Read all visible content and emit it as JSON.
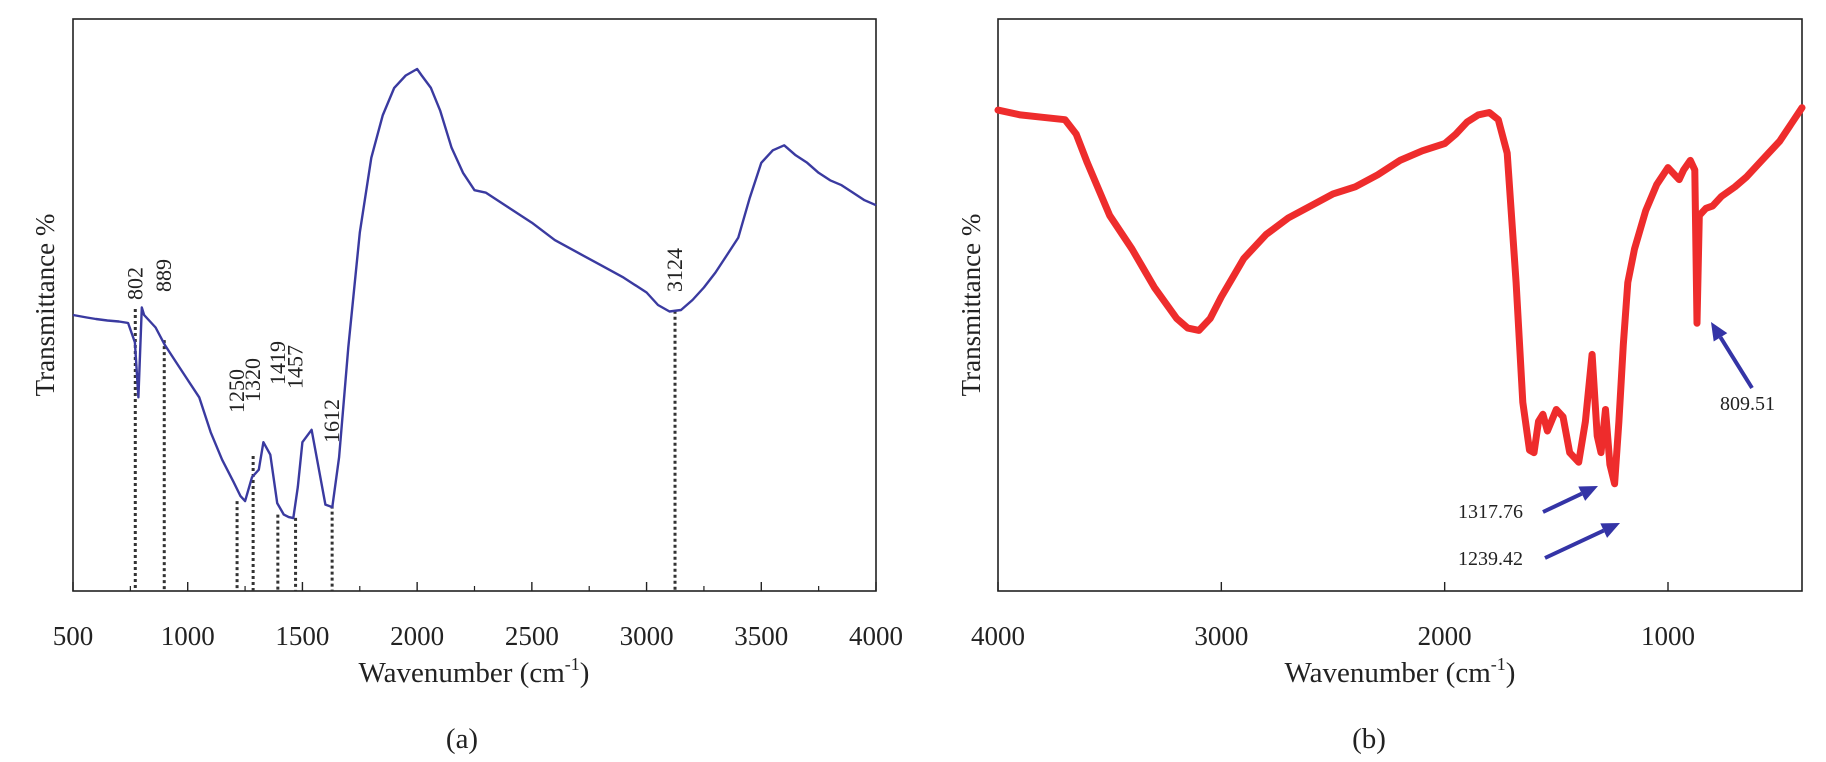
{
  "chart_data": [
    {
      "type": "line",
      "panel_label": "(a)",
      "xlabel": "Wavenumber (cm",
      "xlabel_sup": "-1",
      "xlabel_end": ")",
      "ylabel": "Transmittance %",
      "xlim": [
        500,
        4000
      ],
      "x_reversed": false,
      "x_ticks": [
        "500",
        "1000",
        "1500",
        "2000",
        "2500",
        "3000",
        "3500",
        "4000"
      ],
      "x_tick_values": [
        500,
        1000,
        1500,
        2000,
        2500,
        3000,
        3500,
        4000
      ],
      "y_axis_values_shown": false,
      "line_color": "#3a3aa0",
      "series": [
        {
          "x": [
            500,
            560,
            600,
            650,
            700,
            740,
            770,
            785,
            800,
            810,
            830,
            860,
            900,
            950,
            1000,
            1050,
            1100,
            1150,
            1200,
            1230,
            1250,
            1280,
            1310,
            1330,
            1360,
            1390,
            1419,
            1440,
            1460,
            1480,
            1500,
            1540,
            1570,
            1600,
            1630,
            1660,
            1700,
            1750,
            1800,
            1850,
            1900,
            1950,
            2000,
            2020,
            2060,
            2100,
            2150,
            2200,
            2250,
            2300,
            2400,
            2500,
            2600,
            2700,
            2800,
            2900,
            3000,
            3050,
            3100,
            3150,
            3200,
            3250,
            3300,
            3350,
            3400,
            3450,
            3500,
            3550,
            3600,
            3650,
            3700,
            3750,
            3800,
            3850,
            3900,
            3950,
            4000
          ],
          "y": [
            48.5,
            48.0,
            47.7,
            47.4,
            47.2,
            46.9,
            43.0,
            32.0,
            50.0,
            48.5,
            47.5,
            46.0,
            42.5,
            39.0,
            35.5,
            32.0,
            25.0,
            19.5,
            15.0,
            12.2,
            11.2,
            16.0,
            17.5,
            23.0,
            20.5,
            10.8,
            8.5,
            8.0,
            7.8,
            14.0,
            23.0,
            25.5,
            18.0,
            10.5,
            10.0,
            20.0,
            42.0,
            65.0,
            80.0,
            88.5,
            94.0,
            96.5,
            97.8,
            96.5,
            94.0,
            89.5,
            82.0,
            77.0,
            73.5,
            73.0,
            70.0,
            67.0,
            63.5,
            61.0,
            58.5,
            56.0,
            53.0,
            50.5,
            49.2,
            49.5,
            51.5,
            54.0,
            57.0,
            60.5,
            64.0,
            72.0,
            79.0,
            81.5,
            82.5,
            80.5,
            79.0,
            77.0,
            75.5,
            74.5,
            73.0,
            71.5,
            70.5
          ]
        }
      ],
      "annotations": [
        {
          "label": "802",
          "x": 802
        },
        {
          "label": "889",
          "x": 889
        },
        {
          "label": "1250",
          "x": 1250
        },
        {
          "label": "1320",
          "x": 1320
        },
        {
          "label": "1419",
          "x": 1419
        },
        {
          "label": "1457",
          "x": 1457
        },
        {
          "label": "1612",
          "x": 1612
        },
        {
          "label": "3124",
          "x": 3124
        }
      ]
    },
    {
      "type": "line",
      "panel_label": "(b)",
      "xlabel": "Wavenumber (cm",
      "xlabel_sup": "-1",
      "xlabel_end": ")",
      "ylabel": "Transmittance %",
      "xlim": [
        4000,
        400
      ],
      "x_reversed": true,
      "x_ticks": [
        "4000",
        "3000",
        "2000",
        "1000"
      ],
      "x_tick_values": [
        4000,
        3000,
        2000,
        1000
      ],
      "y_axis_values_shown": false,
      "line_color": "#ee2c2c",
      "series": [
        {
          "x": [
            4000,
            3900,
            3800,
            3700,
            3650,
            3600,
            3500,
            3400,
            3300,
            3200,
            3150,
            3100,
            3050,
            3000,
            2950,
            2900,
            2800,
            2700,
            2600,
            2500,
            2400,
            2300,
            2200,
            2100,
            2000,
            1950,
            1900,
            1850,
            1800,
            1760,
            1720,
            1680,
            1650,
            1620,
            1600,
            1580,
            1560,
            1540,
            1500,
            1470,
            1440,
            1400,
            1370,
            1340,
            1317,
            1300,
            1280,
            1260,
            1239,
            1220,
            1200,
            1180,
            1150,
            1100,
            1050,
            1000,
            950,
            930,
            900,
            880,
            870,
            860,
            830,
            800,
            760,
            700,
            650,
            600,
            550,
            500,
            450,
            400
          ],
          "y": [
            91.0,
            90.0,
            89.5,
            89.0,
            86.0,
            80.0,
            69.0,
            62.0,
            54.0,
            47.5,
            45.5,
            45.0,
            47.5,
            52.0,
            56.0,
            60.0,
            65.0,
            68.5,
            71.0,
            73.5,
            75.0,
            77.5,
            80.5,
            82.5,
            84.0,
            86.0,
            88.5,
            90.0,
            90.5,
            89.0,
            82.0,
            55.0,
            30.0,
            20.0,
            19.5,
            26.0,
            27.5,
            24.0,
            28.5,
            27.0,
            19.5,
            17.5,
            26.0,
            40.0,
            23.0,
            19.5,
            28.5,
            17.0,
            13.0,
            26.0,
            42.0,
            55.0,
            62.0,
            70.0,
            75.5,
            79.0,
            76.5,
            78.5,
            80.5,
            78.5,
            46.5,
            69.0,
            70.5,
            71.0,
            73.0,
            75.0,
            77.0,
            79.5,
            82.0,
            84.5,
            88.0,
            91.5
          ]
        }
      ],
      "annotations": [
        {
          "label": "1317.76",
          "x": 1317.76
        },
        {
          "label": "1239.42",
          "x": 1239.42
        },
        {
          "label": "809.51",
          "x": 809.51
        }
      ]
    }
  ]
}
